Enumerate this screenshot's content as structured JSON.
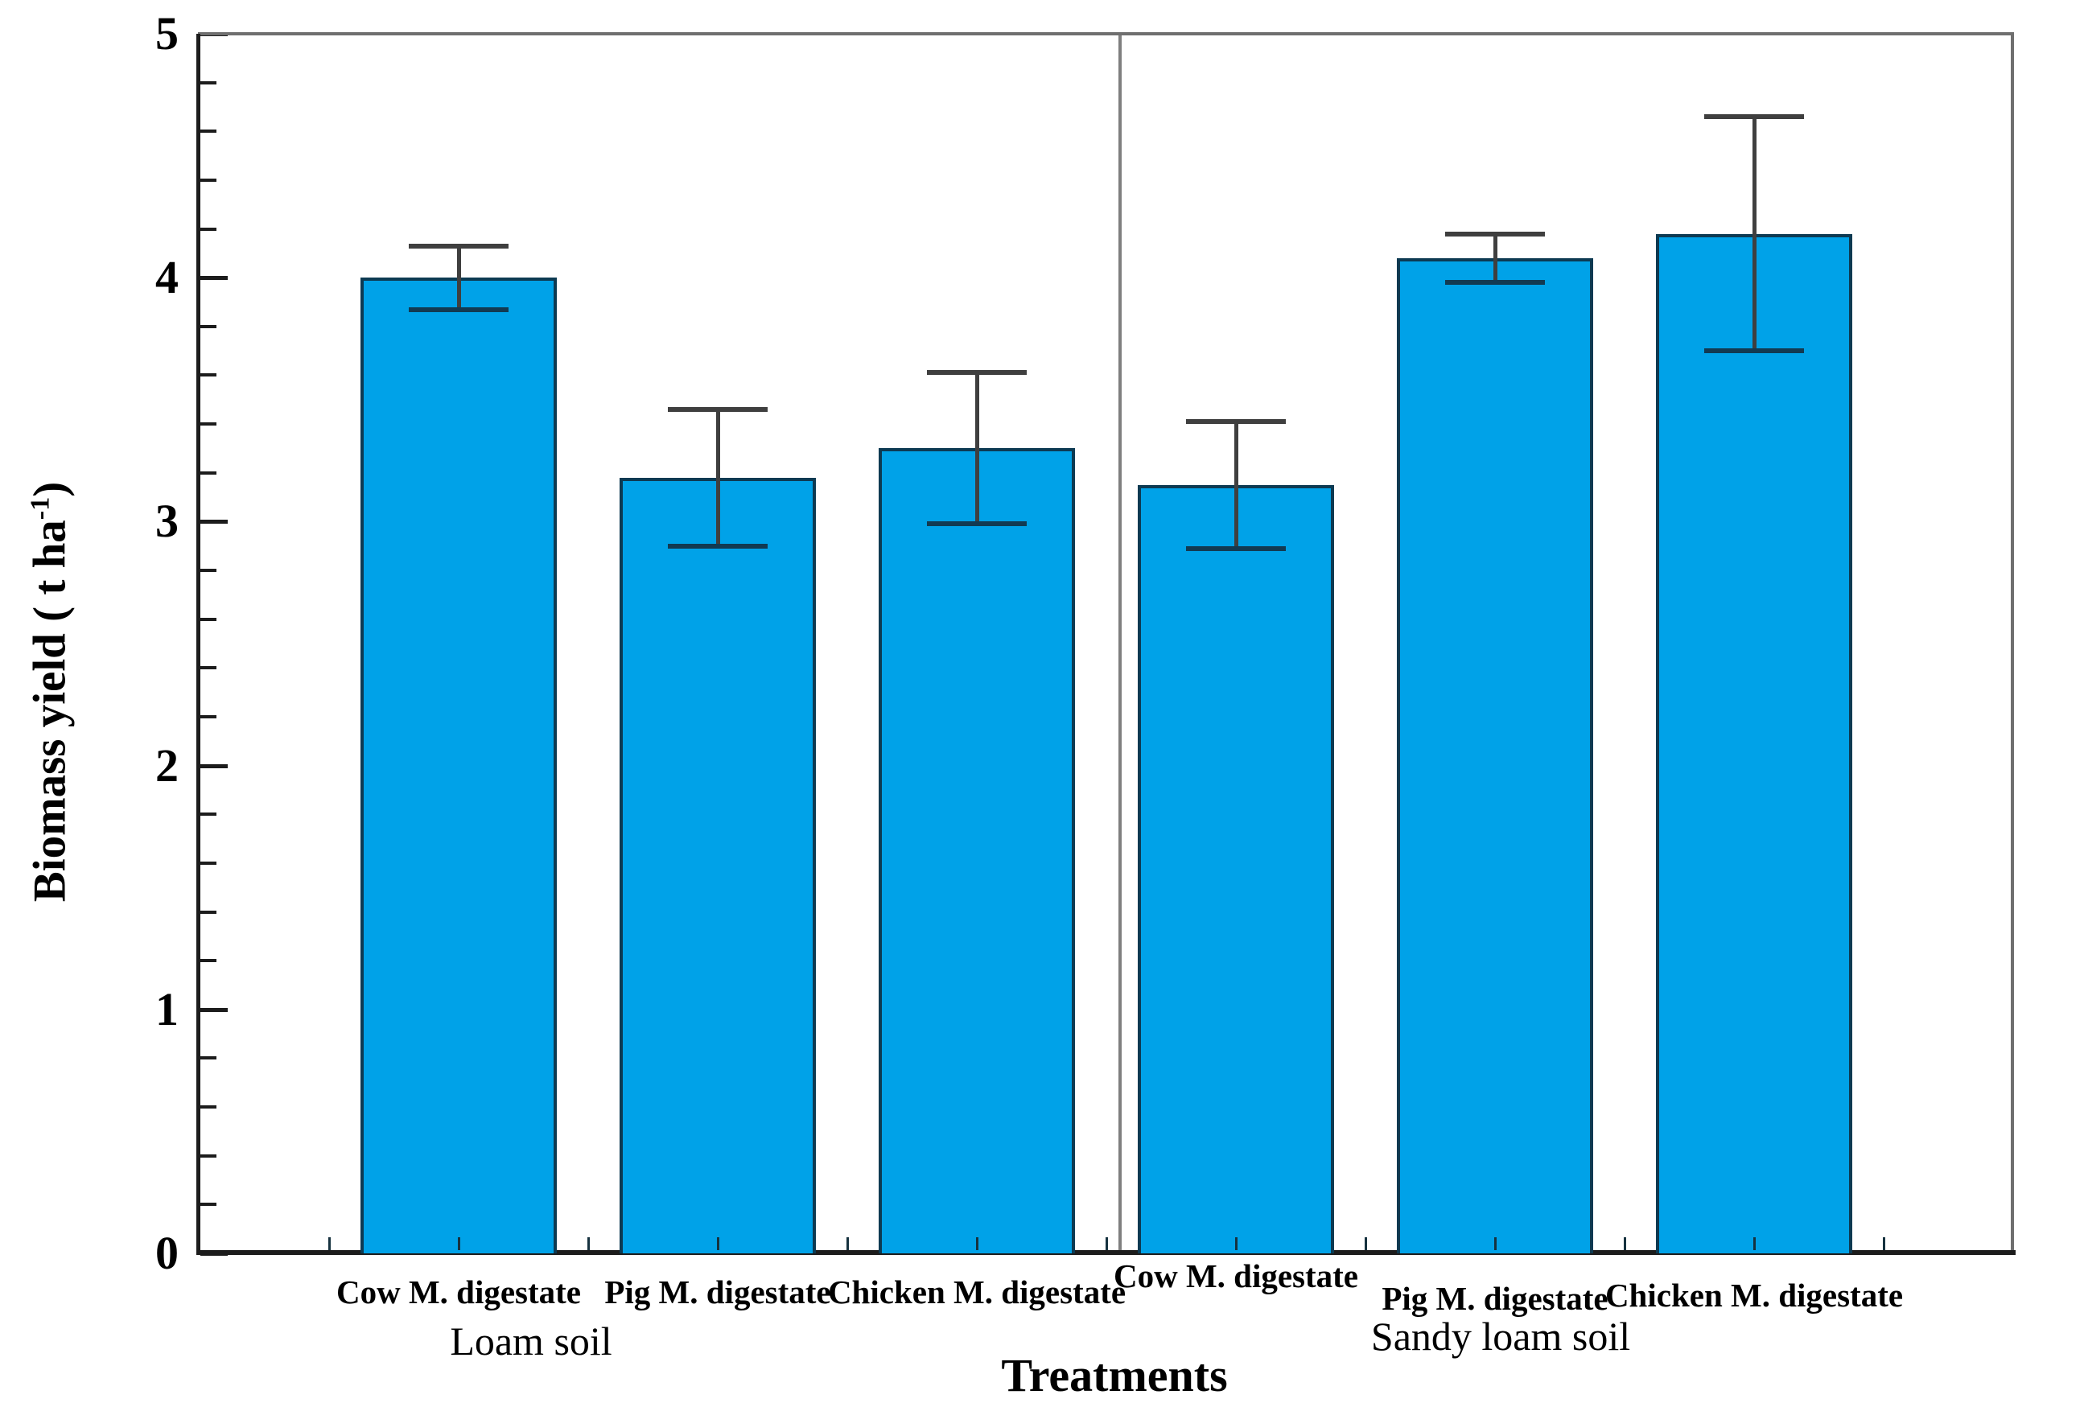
{
  "chart_data": {
    "type": "bar",
    "title": "",
    "xlabel": "Treatments",
    "ylabel": "Biomass yield ( t ha-1)",
    "ylabel_prefix": "Biomass yield ( t ha",
    "ylabel_superscript": "-1",
    "ylabel_suffix": ")",
    "ylim": [
      0,
      5
    ],
    "yticks": [
      0,
      1,
      2,
      3,
      4,
      5
    ],
    "y_minor_tick_step": 0.2,
    "grid": "off",
    "legend_position": "none",
    "categories": [
      "Cow M. digestate",
      "Pig M. digestate",
      "Chicken M. digestate",
      "Cow M. digestate",
      "Pig M. digestate",
      "Chicken M. digestate"
    ],
    "groups": [
      {
        "label": "Loam soil",
        "categories": [
          "Cow M. digestate",
          "Pig M. digestate",
          "Chicken M. digestate"
        ],
        "values": [
          4.0,
          3.18,
          3.3
        ],
        "errors": [
          0.13,
          0.28,
          0.31
        ]
      },
      {
        "label": "Sandy loam soil",
        "categories": [
          "Cow M. digestate",
          "Pig M. digestate",
          "Chicken M. digestate"
        ],
        "values": [
          3.15,
          4.08,
          4.18
        ],
        "errors": [
          0.26,
          0.1,
          0.48
        ]
      }
    ],
    "colors": {
      "bar_fill": "#00A2E8",
      "bar_edge": "#0d3a52",
      "error_bar": "#3f3f3f",
      "divider": "#7f7f7f",
      "axis": "#1c1c1c",
      "outer_frame": "#6f6f6f",
      "text": "#000000",
      "background": "#ffffff"
    }
  }
}
